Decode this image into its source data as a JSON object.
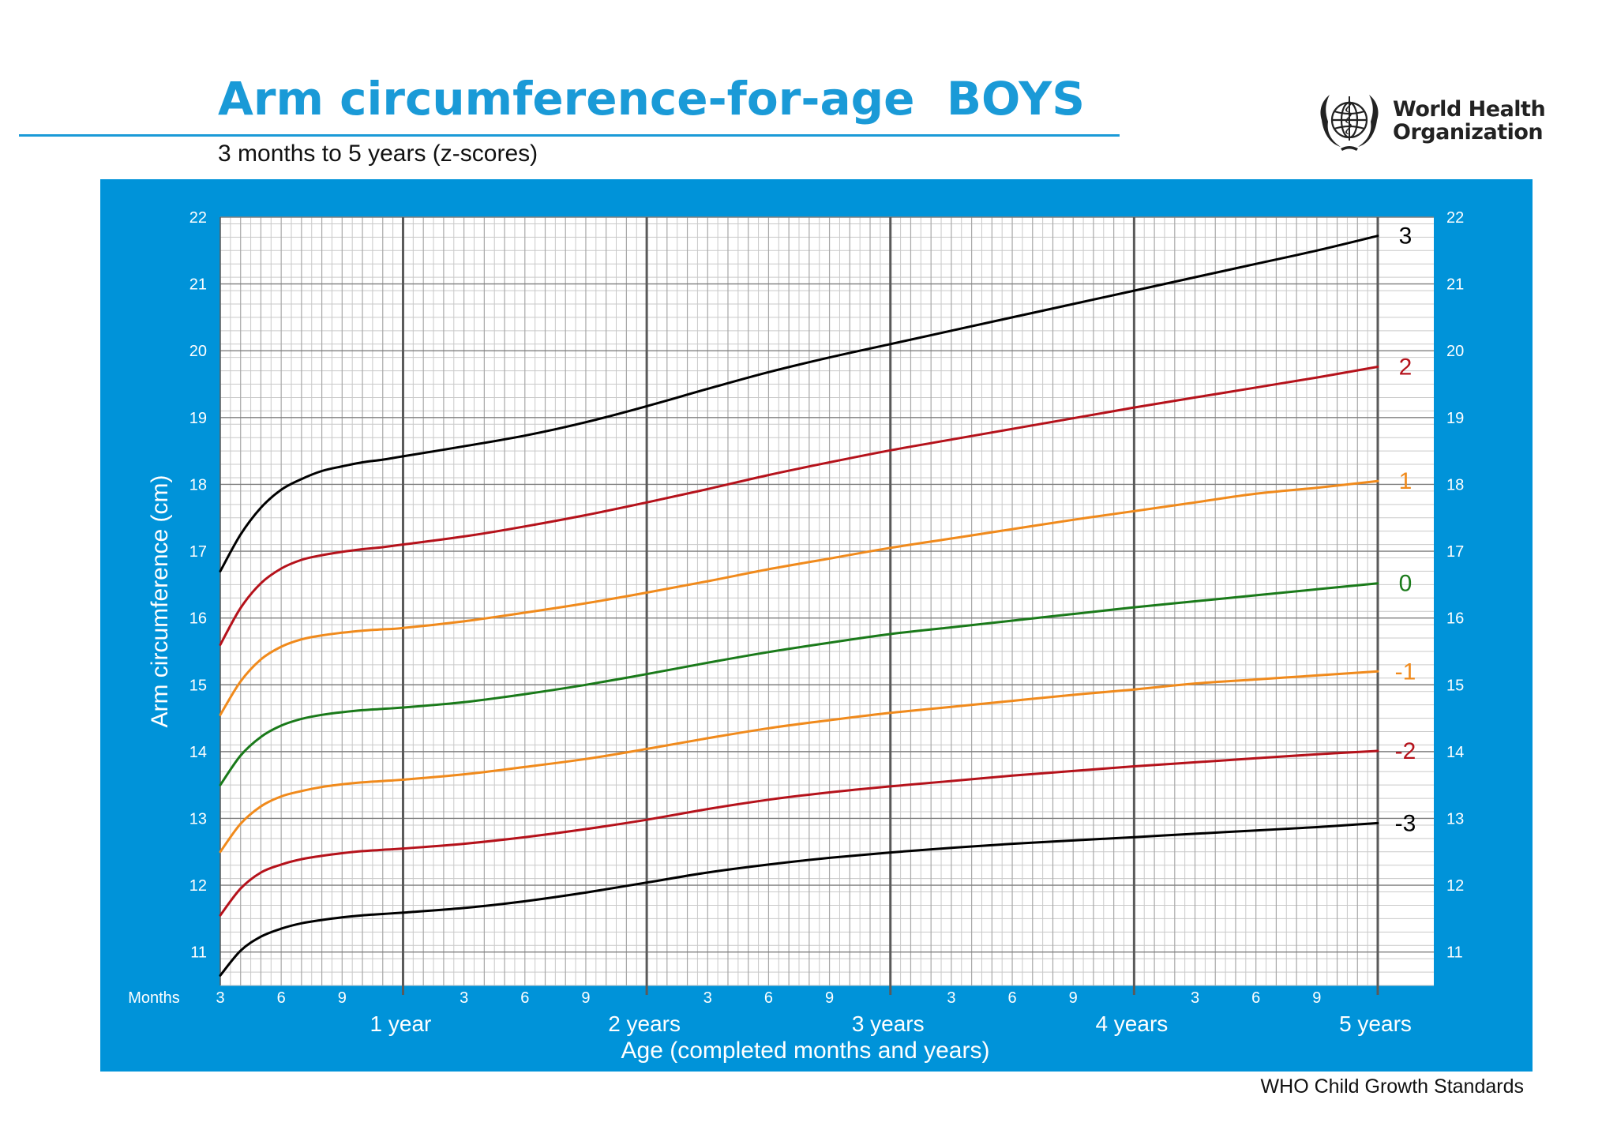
{
  "header": {
    "title": "Arm circumference-for-age  BOYS",
    "subtitle": "3 months to 5 years (z-scores)"
  },
  "logo": {
    "line1": "World Health",
    "line2": "Organization",
    "icon": "who-emblem-icon"
  },
  "footer": {
    "source": "WHO Child Growth Standards"
  },
  "colors": {
    "panel": "#0093d9",
    "title": "#1a9ad7",
    "grid_minor": "#c9c9c9",
    "grid_major": "#7f7f7f",
    "grid_year": "#5a5a5a",
    "sd3": "#000000",
    "sd2": "#b5121b",
    "sd1": "#f08a1c",
    "median": "#1a7a1a"
  },
  "chart_data": {
    "type": "line",
    "title": "Arm circumference-for-age  BOYS",
    "subtitle": "3 months to 5 years (z-scores)",
    "xlabel": "Age (completed months and years)",
    "ylabel": "Arm circumference (cm)",
    "x_unit_label": "Months",
    "xlim": [
      3,
      60
    ],
    "ylim": [
      10.5,
      22
    ],
    "y_ticks": [
      11,
      12,
      13,
      14,
      15,
      16,
      17,
      18,
      19,
      20,
      21,
      22
    ],
    "month_ticks": [
      {
        "month": 3,
        "label": "3"
      },
      {
        "month": 6,
        "label": "6"
      },
      {
        "month": 9,
        "label": "9"
      },
      {
        "month": 15,
        "label": "3"
      },
      {
        "month": 18,
        "label": "6"
      },
      {
        "month": 21,
        "label": "9"
      },
      {
        "month": 27,
        "label": "3"
      },
      {
        "month": 30,
        "label": "6"
      },
      {
        "month": 33,
        "label": "9"
      },
      {
        "month": 39,
        "label": "3"
      },
      {
        "month": 42,
        "label": "6"
      },
      {
        "month": 45,
        "label": "9"
      },
      {
        "month": 51,
        "label": "3"
      },
      {
        "month": 54,
        "label": "6"
      },
      {
        "month": 57,
        "label": "9"
      }
    ],
    "year_ticks": [
      {
        "month": 12,
        "label": "1 year"
      },
      {
        "month": 24,
        "label": "2 years"
      },
      {
        "month": 36,
        "label": "3 years"
      },
      {
        "month": 48,
        "label": "4 years"
      },
      {
        "month": 60,
        "label": "5 years"
      }
    ],
    "grid": true,
    "x": [
      3,
      4,
      5,
      6,
      7,
      8,
      9,
      10,
      11,
      12,
      15,
      18,
      21,
      24,
      27,
      30,
      33,
      36,
      39,
      42,
      45,
      48,
      51,
      54,
      57,
      60
    ],
    "series": [
      {
        "name": "3",
        "color": "#000000",
        "values": [
          16.7,
          17.25,
          17.65,
          17.92,
          18.08,
          18.2,
          18.27,
          18.33,
          18.37,
          18.42,
          18.57,
          18.73,
          18.93,
          19.17,
          19.43,
          19.68,
          19.9,
          20.1,
          20.3,
          20.5,
          20.7,
          20.9,
          21.1,
          21.3,
          21.5,
          21.72
        ]
      },
      {
        "name": "2",
        "color": "#b5121b",
        "values": [
          15.6,
          16.15,
          16.52,
          16.74,
          16.87,
          16.94,
          16.99,
          17.03,
          17.06,
          17.1,
          17.22,
          17.37,
          17.54,
          17.73,
          17.93,
          18.14,
          18.33,
          18.51,
          18.67,
          18.83,
          18.99,
          19.15,
          19.3,
          19.45,
          19.6,
          19.76
        ]
      },
      {
        "name": "1",
        "color": "#f08a1c",
        "values": [
          14.55,
          15.05,
          15.38,
          15.57,
          15.68,
          15.74,
          15.78,
          15.81,
          15.83,
          15.85,
          15.95,
          16.08,
          16.22,
          16.38,
          16.55,
          16.73,
          16.89,
          17.05,
          17.19,
          17.33,
          17.47,
          17.6,
          17.73,
          17.86,
          17.95,
          18.05
        ]
      },
      {
        "name": "0",
        "color": "#1a7a1a",
        "values": [
          13.5,
          13.94,
          14.22,
          14.39,
          14.49,
          14.55,
          14.59,
          14.62,
          14.64,
          14.66,
          14.74,
          14.86,
          15.0,
          15.16,
          15.33,
          15.49,
          15.63,
          15.76,
          15.86,
          15.96,
          16.06,
          16.16,
          16.25,
          16.34,
          16.43,
          16.52
        ]
      },
      {
        "name": "-1",
        "color": "#f08a1c",
        "values": [
          12.5,
          12.92,
          13.18,
          13.33,
          13.41,
          13.47,
          13.51,
          13.54,
          13.56,
          13.58,
          13.66,
          13.77,
          13.89,
          14.04,
          14.2,
          14.35,
          14.47,
          14.58,
          14.67,
          14.76,
          14.85,
          14.93,
          15.02,
          15.08,
          15.14,
          15.2
        ]
      },
      {
        "name": "-2",
        "color": "#b5121b",
        "values": [
          11.55,
          11.95,
          12.19,
          12.31,
          12.39,
          12.44,
          12.48,
          12.51,
          12.53,
          12.55,
          12.62,
          12.72,
          12.84,
          12.98,
          13.14,
          13.28,
          13.39,
          13.48,
          13.56,
          13.64,
          13.71,
          13.78,
          13.84,
          13.9,
          13.96,
          14.01
        ]
      },
      {
        "name": "-3",
        "color": "#000000",
        "values": [
          10.65,
          11.02,
          11.23,
          11.35,
          11.43,
          11.48,
          11.52,
          11.55,
          11.57,
          11.59,
          11.66,
          11.76,
          11.89,
          12.04,
          12.19,
          12.31,
          12.41,
          12.49,
          12.56,
          12.62,
          12.67,
          12.72,
          12.77,
          12.82,
          12.87,
          12.93
        ]
      }
    ]
  }
}
